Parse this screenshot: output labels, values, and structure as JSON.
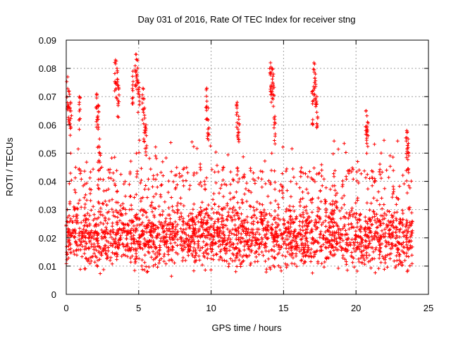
{
  "chart_data": {
    "type": "scatter",
    "title": "Day 031 of 2016, Rate Of TEC Index for receiver stng",
    "xlabel": "GPS time / hours",
    "ylabel": "ROTI / TECUs",
    "xlim": [
      0,
      25
    ],
    "ylim": [
      0,
      0.09
    ],
    "xticks": [
      0,
      5,
      10,
      15,
      20,
      25
    ],
    "yticks": [
      0,
      0.01,
      0.02,
      0.03,
      0.04,
      0.05,
      0.06,
      0.07,
      0.08,
      0.09
    ],
    "xtick_labels": [
      "0",
      "5",
      "10",
      "15",
      "20",
      "25"
    ],
    "ytick_labels": [
      "0",
      "0.01",
      "0.02",
      "0.03",
      "0.04",
      "0.05",
      "0.06",
      "0.07",
      "0.08",
      "0.09"
    ],
    "grid": true,
    "marker": "+",
    "marker_color": "#ff0000",
    "series": [
      {
        "name": "ROTI",
        "x_range": [
          0,
          23.9
        ],
        "typical_band": [
          0.01,
          0.03
        ],
        "spikes": [
          {
            "x": 0.1,
            "y": 0.077
          },
          {
            "x": 0.2,
            "y": 0.072
          },
          {
            "x": 0.3,
            "y": 0.068
          },
          {
            "x": 0.9,
            "y": 0.07
          },
          {
            "x": 2.1,
            "y": 0.071
          },
          {
            "x": 2.2,
            "y": 0.067
          },
          {
            "x": 2.3,
            "y": 0.055
          },
          {
            "x": 3.4,
            "y": 0.083
          },
          {
            "x": 3.5,
            "y": 0.08
          },
          {
            "x": 3.6,
            "y": 0.074
          },
          {
            "x": 4.6,
            "y": 0.079
          },
          {
            "x": 4.8,
            "y": 0.085
          },
          {
            "x": 4.9,
            "y": 0.083
          },
          {
            "x": 5.0,
            "y": 0.075
          },
          {
            "x": 5.3,
            "y": 0.073
          },
          {
            "x": 5.4,
            "y": 0.066
          },
          {
            "x": 5.5,
            "y": 0.06
          },
          {
            "x": 9.7,
            "y": 0.073
          },
          {
            "x": 9.8,
            "y": 0.066
          },
          {
            "x": 11.8,
            "y": 0.068
          },
          {
            "x": 11.9,
            "y": 0.063
          },
          {
            "x": 14.1,
            "y": 0.082
          },
          {
            "x": 14.2,
            "y": 0.08
          },
          {
            "x": 14.3,
            "y": 0.078
          },
          {
            "x": 14.4,
            "y": 0.063
          },
          {
            "x": 17.1,
            "y": 0.082
          },
          {
            "x": 17.2,
            "y": 0.078
          },
          {
            "x": 17.0,
            "y": 0.072
          },
          {
            "x": 17.3,
            "y": 0.07
          },
          {
            "x": 20.7,
            "y": 0.065
          },
          {
            "x": 20.8,
            "y": 0.061
          },
          {
            "x": 23.5,
            "y": 0.058
          },
          {
            "x": 23.6,
            "y": 0.055
          }
        ]
      }
    ]
  }
}
